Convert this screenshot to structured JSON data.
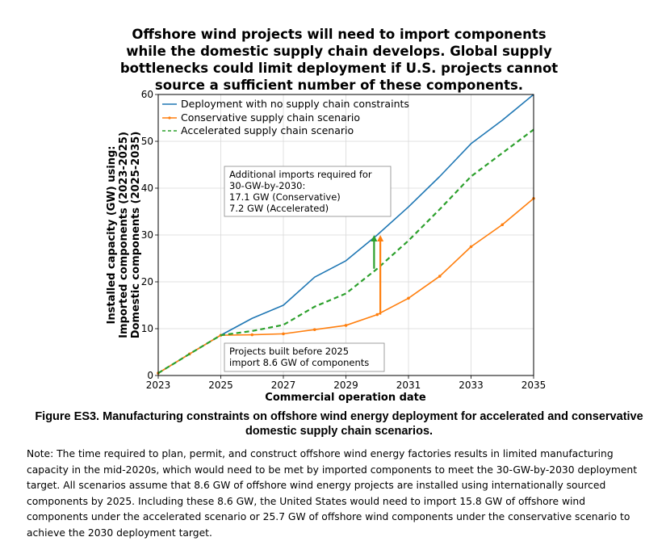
{
  "title": "Offshore wind projects will need to import components while the domestic supply chain develops. Global supply bottlenecks could limit deployment if U.S. projects cannot source a sufficient number of these components.",
  "caption": "Figure ES3. Manufacturing constraints on offshore wind energy deployment for accelerated and conservative domestic supply chain scenarios.",
  "note": "Note: The time required to plan, permit, and construct offshore wind energy factories results in limited manufacturing capacity in the mid-2020s, which would need to be met by imported components to meet the 30-GW-by-2030 deployment target. All scenarios assume that 8.6 GW of offshore wind energy projects are installed using internationally sourced components by 2025. Including these 8.6 GW, the United States would need to import 15.8 GW of offshore wind components under the accelerated scenario or 25.7 GW of offshore wind components under the conservative scenario to achieve the 2030 deployment target.",
  "colors": {
    "blue": "#1f77b4",
    "orange": "#ff7f0e",
    "green": "#2ca02c",
    "grid": "#d9d9d9"
  },
  "chart_data": {
    "type": "line",
    "xlabel": "Commercial operation date",
    "ylabel_lines": [
      "Installed capacity (GW) using:",
      "Imported components (2023-2025)",
      "Domestic components (2025-2035)"
    ],
    "xlim": [
      2023,
      2035
    ],
    "ylim": [
      0,
      60
    ],
    "xticks": [
      2023,
      2025,
      2027,
      2029,
      2031,
      2033,
      2035
    ],
    "yticks": [
      0,
      10,
      20,
      30,
      40,
      50,
      60
    ],
    "grid": true,
    "legend_position": "top-left",
    "x": [
      2023,
      2024,
      2025,
      2026,
      2027,
      2028,
      2029,
      2030,
      2031,
      2032,
      2033,
      2034,
      2035
    ],
    "series": [
      {
        "name": "Deployment with no supply chain constraints",
        "color": "#1f77b4",
        "style": "solid",
        "values": [
          0.5,
          4.6,
          8.6,
          12.2,
          15.0,
          21.0,
          24.5,
          30.0,
          36.0,
          42.5,
          49.5,
          54.5,
          60.0
        ]
      },
      {
        "name": "Conservative supply chain scenario",
        "color": "#ff7f0e",
        "style": "marker",
        "values": [
          0.5,
          4.6,
          8.6,
          8.7,
          8.9,
          9.8,
          10.7,
          13.0,
          16.5,
          21.2,
          27.5,
          32.2,
          37.8
        ]
      },
      {
        "name": "Accelerated supply chain scenario",
        "color": "#2ca02c",
        "style": "dashed",
        "values": [
          0.5,
          4.6,
          8.6,
          9.5,
          10.8,
          14.7,
          17.5,
          22.8,
          28.8,
          35.5,
          42.5,
          47.5,
          52.5
        ]
      }
    ],
    "annotations": [
      {
        "lines": [
          "Additional imports required for",
          "30-GW-by-2030:",
          "17.1 GW (Conservative)",
          "7.2 GW (Accelerated)"
        ],
        "anchor": [
          2025.3,
          43.5
        ]
      },
      {
        "lines": [
          "Projects built before 2025",
          "import 8.6 GW of components"
        ],
        "anchor": [
          2025.3,
          6.5
        ]
      }
    ],
    "arrows": [
      {
        "name": "accelerated-import-arrow",
        "color": "#2ca02c",
        "x": 2029.9,
        "from": 22.8,
        "to": 30.0
      },
      {
        "name": "conservative-import-arrow",
        "color": "#ff7f0e",
        "x": 2030.1,
        "from": 13.0,
        "to": 30.0
      }
    ]
  }
}
